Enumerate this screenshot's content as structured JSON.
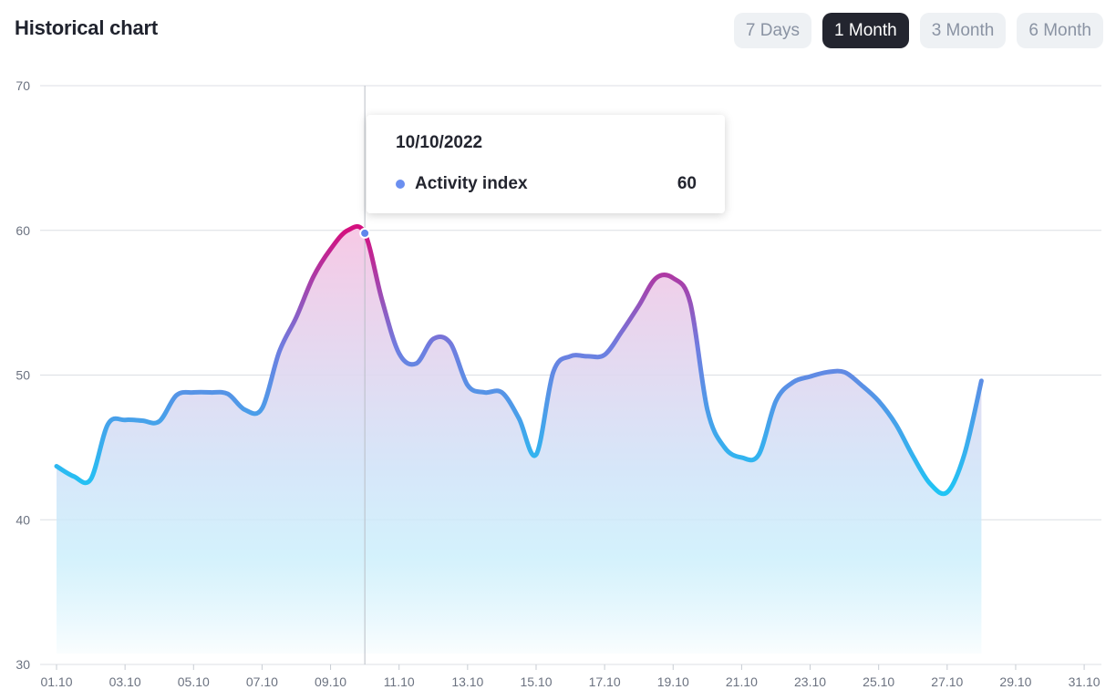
{
  "header": {
    "title": "Historical chart",
    "ranges": [
      {
        "label": "7 Days",
        "active": false
      },
      {
        "label": "1 Month",
        "active": true
      },
      {
        "label": "3 Month",
        "active": false
      },
      {
        "label": "6 Month",
        "active": false
      }
    ]
  },
  "tooltip": {
    "date": "10/10/2022",
    "series_label": "Activity index",
    "value": "60"
  },
  "colors": {
    "line_low": "#20c4f4",
    "line_mid": "#6f7de0",
    "line_high": "#d4107f",
    "fill_top": "#f6c6e4",
    "fill_bottom": "#ffffff",
    "grid": "#dcdfe4"
  },
  "chart_data": {
    "type": "area",
    "title": "Historical chart",
    "xlabel": "",
    "ylabel": "",
    "ylim": [
      30,
      70
    ],
    "yticks": [
      30,
      40,
      50,
      60,
      70
    ],
    "xtick_labels": [
      "01.10",
      "03.10",
      "05.10",
      "07.10",
      "09.10",
      "11.10",
      "13.10",
      "15.10",
      "17.10",
      "19.10",
      "21.10",
      "23.10",
      "25.10",
      "27.10",
      "29.10",
      "31.10"
    ],
    "grid": "horizontal",
    "highlight_x": "10.10",
    "series": [
      {
        "name": "Activity index",
        "points": [
          [
            "01.10",
            43.7
          ],
          [
            "01.5",
            43.0
          ],
          [
            "02.10",
            42.8
          ],
          [
            "02.5",
            46.6
          ],
          [
            "03.10",
            46.9
          ],
          [
            "03.5",
            46.85
          ],
          [
            "04.10",
            46.8
          ],
          [
            "04.5",
            48.6
          ],
          [
            "05.10",
            48.8
          ],
          [
            "05.5",
            48.8
          ],
          [
            "06.10",
            48.7
          ],
          [
            "06.5",
            47.6
          ],
          [
            "07.10",
            47.7
          ],
          [
            "07.5",
            51.6
          ],
          [
            "08.10",
            54.0
          ],
          [
            "08.5",
            56.8
          ],
          [
            "09.10",
            58.7
          ],
          [
            "09.5",
            60.0
          ],
          [
            "10.10",
            59.8
          ],
          [
            "10.5",
            55.2
          ],
          [
            "11.10",
            51.5
          ],
          [
            "11.5",
            50.8
          ],
          [
            "12.10",
            52.5
          ],
          [
            "12.5",
            52.2
          ],
          [
            "13.10",
            49.3
          ],
          [
            "13.5",
            48.8
          ],
          [
            "14.10",
            48.8
          ],
          [
            "14.5",
            47.0
          ],
          [
            "15.10",
            44.5
          ],
          [
            "15.5",
            50.2
          ],
          [
            "16.10",
            51.3
          ],
          [
            "16.5",
            51.3
          ],
          [
            "17.10",
            51.4
          ],
          [
            "17.5",
            53.0
          ],
          [
            "18.10",
            54.8
          ],
          [
            "18.5",
            56.7
          ],
          [
            "19.10",
            56.7
          ],
          [
            "19.5",
            55.0
          ],
          [
            "20.10",
            47.6
          ],
          [
            "20.5",
            45.0
          ],
          [
            "21.10",
            44.3
          ],
          [
            "21.5",
            44.5
          ],
          [
            "22.10",
            48.2
          ],
          [
            "22.5",
            49.5
          ],
          [
            "23.10",
            49.9
          ],
          [
            "23.5",
            50.2
          ],
          [
            "24.10",
            50.2
          ],
          [
            "24.5",
            49.3
          ],
          [
            "25.10",
            48.2
          ],
          [
            "25.5",
            46.6
          ],
          [
            "26.10",
            44.4
          ],
          [
            "26.5",
            42.5
          ],
          [
            "27.10",
            41.9
          ],
          [
            "27.5",
            44.5
          ],
          [
            "28.10",
            49.6
          ]
        ]
      }
    ]
  }
}
